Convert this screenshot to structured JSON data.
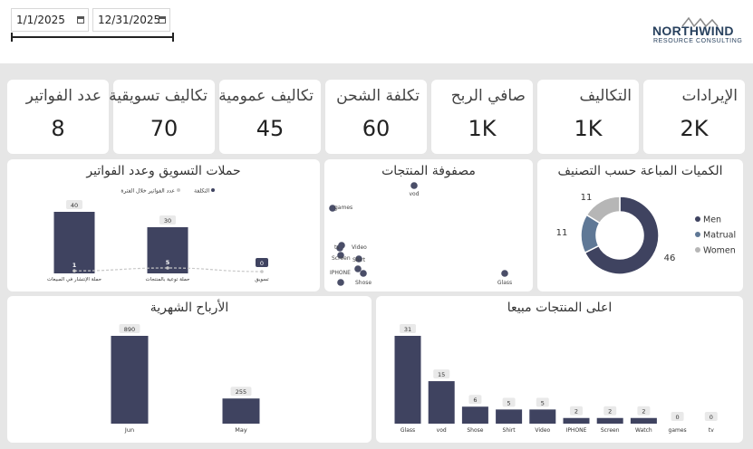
{
  "filters": {
    "start_date": "1/1/2025",
    "end_date": "12/31/2025"
  },
  "logo": {
    "word": "NORTHWIND",
    "sub": "RESOURCE CONSULTING"
  },
  "kpis": [
    {
      "label": "عدد الفواتير",
      "value": "8"
    },
    {
      "label": "تكاليف تسويقية",
      "value": "70"
    },
    {
      "label": "تكاليف عمومية",
      "value": "45"
    },
    {
      "label": "تكلفة الشحن",
      "value": "60"
    },
    {
      "label": "صافي الربح",
      "value": "1K"
    },
    {
      "label": "التكاليف",
      "value": "1K"
    },
    {
      "label": "الإيرادات",
      "value": "2K"
    }
  ],
  "colors": {
    "primary": "#3f4360",
    "secondary": "#5f7896",
    "tertiary": "#b6b6b6"
  },
  "chart_data": [
    {
      "id": "marketing",
      "type": "bar",
      "title": "حملات التسويق وعدد الفواتير",
      "legend": [
        "التكلفة",
        "عدد الفواتير خلال الفترة"
      ],
      "categories": [
        "حملة الإنتشار في المبيعات",
        "حملة توعية بالمنتجات",
        "تسويق"
      ],
      "series": [
        {
          "name": "التكلفة",
          "values": [
            40,
            30,
            0
          ]
        },
        {
          "name": "عدد الفواتير خلال الفترة",
          "values": [
            1,
            5,
            0
          ]
        }
      ]
    },
    {
      "id": "matrix",
      "type": "scatter",
      "title": "مصفوفة المنتجات",
      "points": [
        {
          "label": "vod"
        },
        {
          "label": "games"
        },
        {
          "label": "tv"
        },
        {
          "label": "Video"
        },
        {
          "label": "Screen"
        },
        {
          "label": "Shirt"
        },
        {
          "label": "IPHONE"
        },
        {
          "label": "Shose"
        },
        {
          "label": "Glass"
        }
      ]
    },
    {
      "id": "donut",
      "type": "pie",
      "title": "الكميات المباعة حسب التصنيف",
      "legend_position": "right",
      "slices": [
        {
          "name": "Men",
          "value": 46,
          "color": "#3f4360"
        },
        {
          "name": "Matrual",
          "value": 11,
          "color": "#5f7896"
        },
        {
          "name": "Women",
          "value": 11,
          "color": "#b6b6b6"
        }
      ]
    },
    {
      "id": "monthly",
      "type": "bar",
      "title": "الأرباح الشهرية",
      "categories": [
        "Jun",
        "May"
      ],
      "values": [
        890,
        255
      ]
    },
    {
      "id": "top",
      "type": "bar",
      "title": "اعلى المنتجات مبيعا",
      "categories": [
        "Glass",
        "vod",
        "Shose",
        "Shirt",
        "Video",
        "IPHONE",
        "Screen",
        "Watch",
        "games",
        "tv"
      ],
      "values": [
        31,
        15,
        6,
        5,
        5,
        2,
        2,
        2,
        0,
        0
      ]
    }
  ]
}
